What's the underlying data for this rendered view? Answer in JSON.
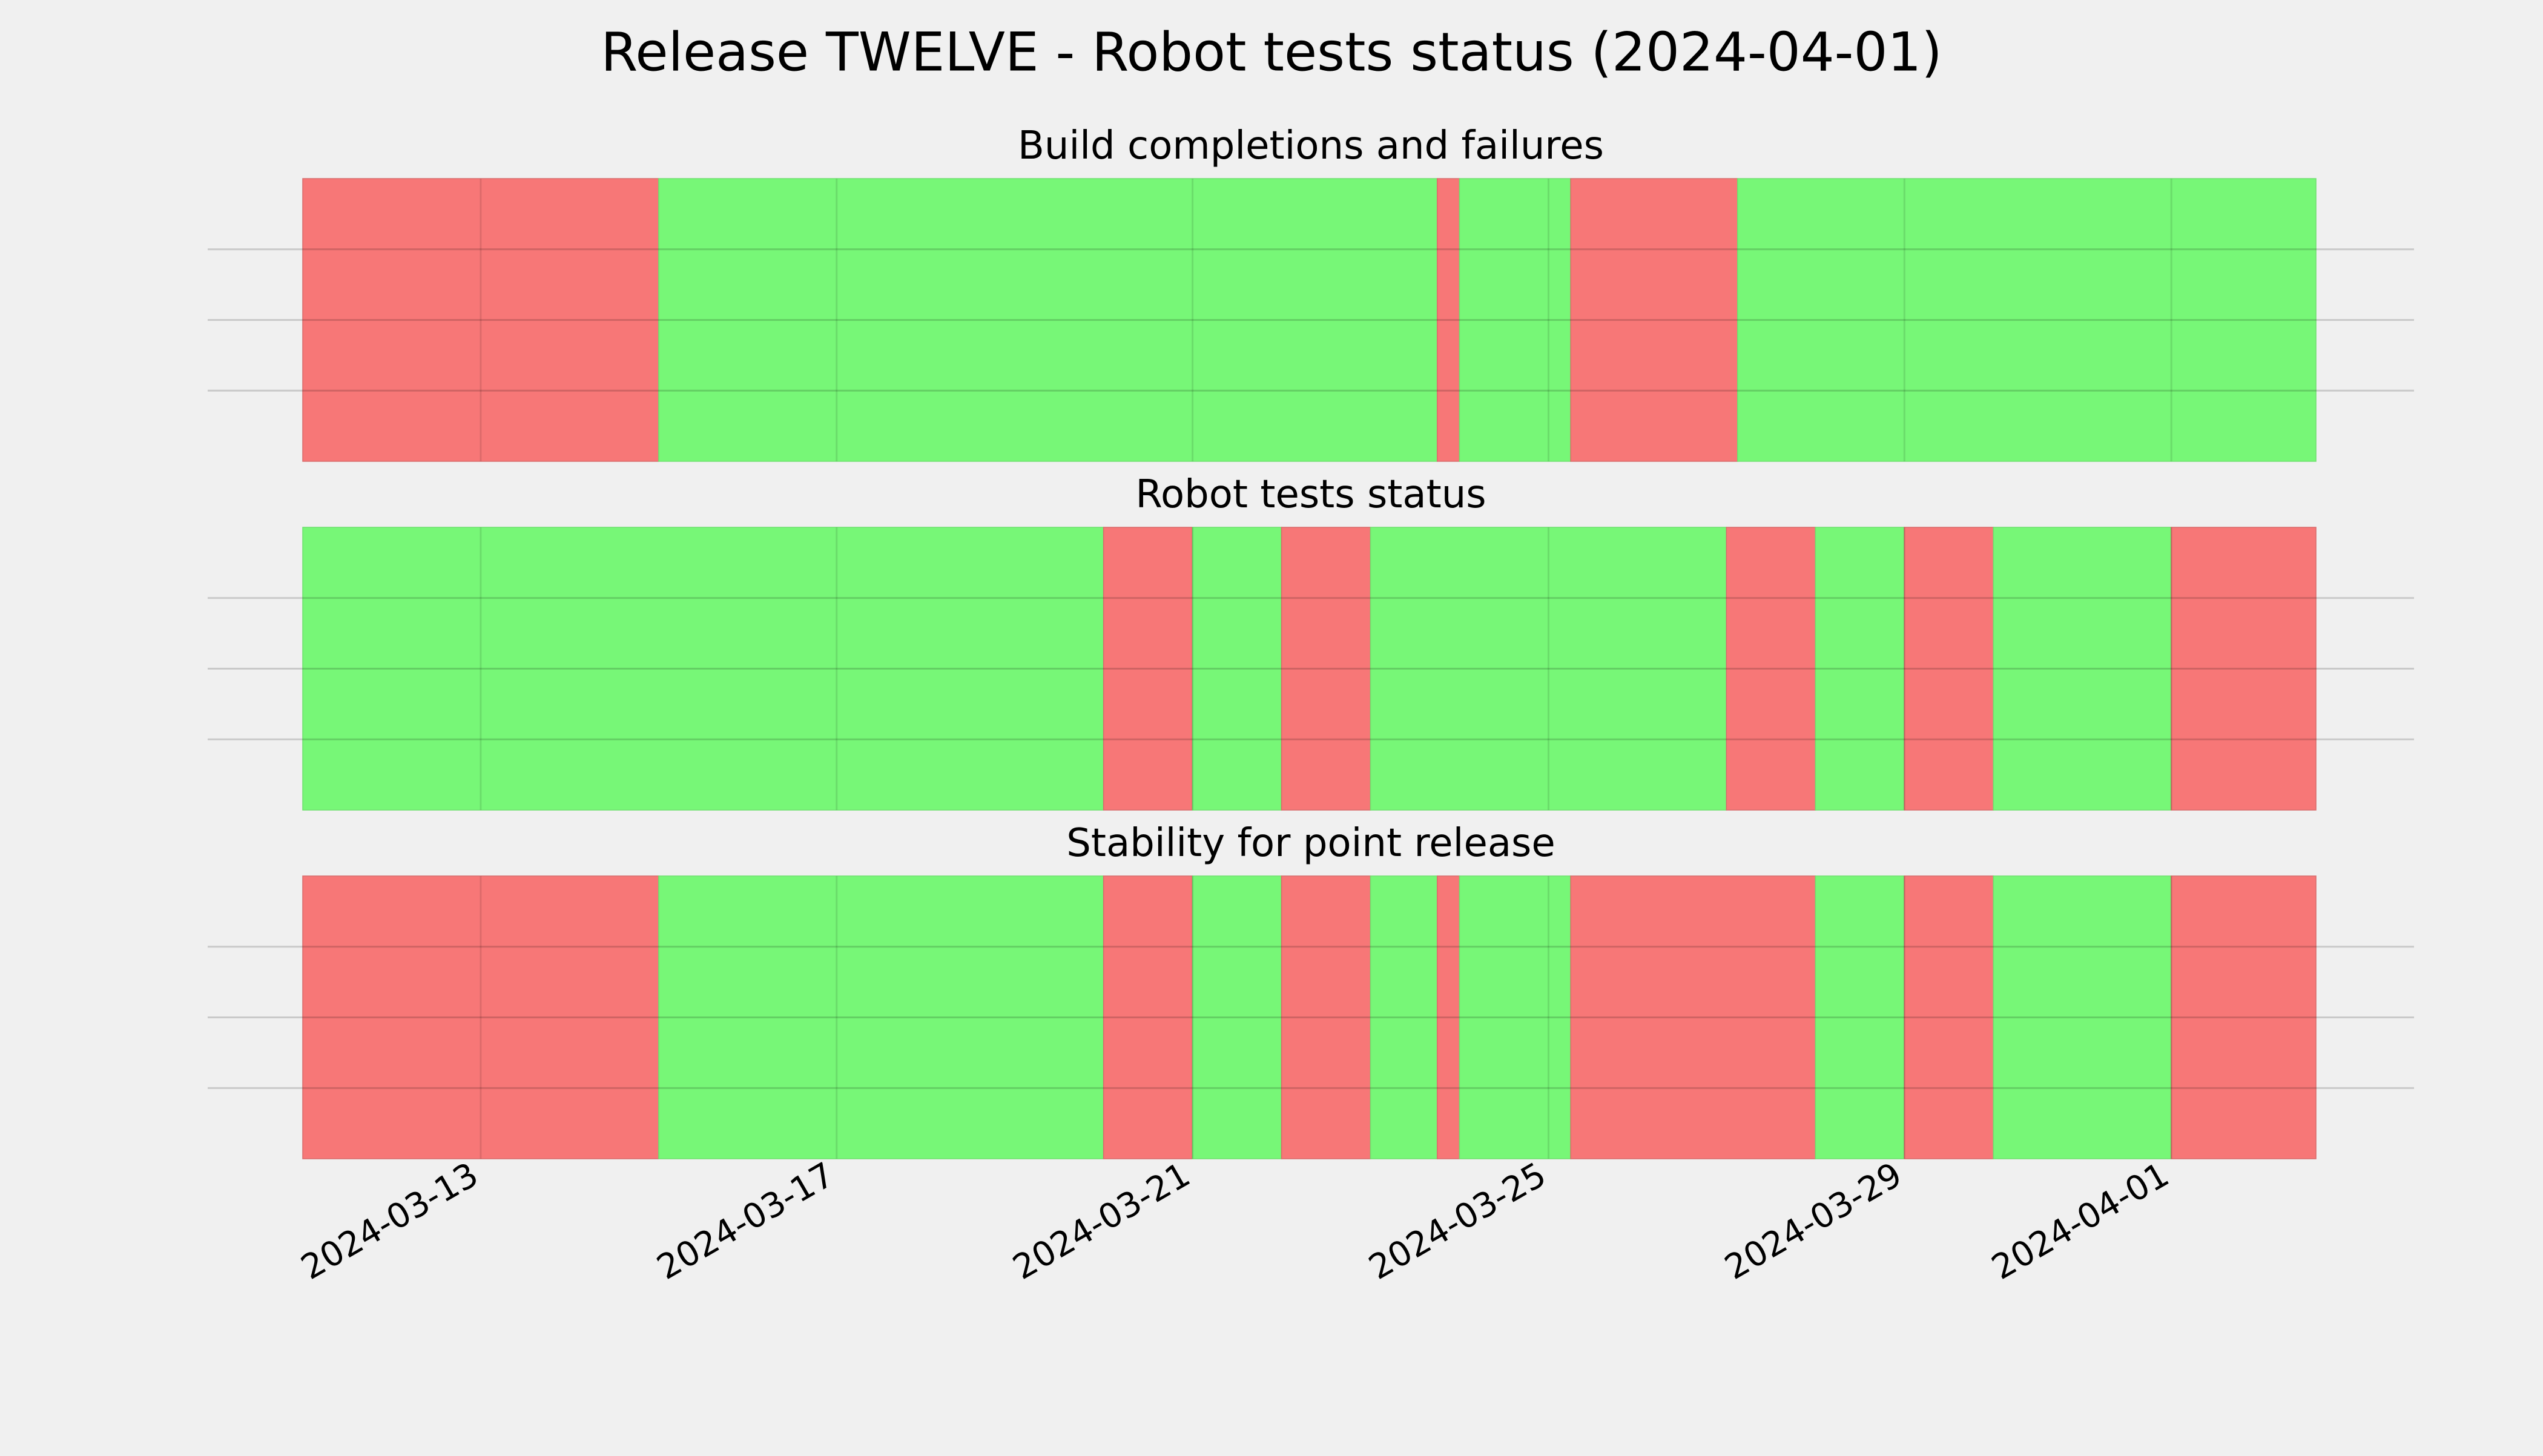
{
  "title": "Release TWELVE - Robot tests status (2024-04-01)",
  "colors": {
    "pass": "#77f777",
    "fail": "#f77777",
    "background": "#f0f0f0",
    "grid": "#cbcbcb"
  },
  "chart_data": {
    "type": "timeline",
    "x_range": [
      "2024-03-11",
      "2024-04-02 15:00"
    ],
    "x_ticks": [
      "2024-03-13",
      "2024-03-17",
      "2024-03-21",
      "2024-03-25",
      "2024-03-29",
      "2024-04-01"
    ],
    "grid": true,
    "subplots": [
      {
        "title": "Build completions and failures",
        "segments": [
          {
            "start": "2024-03-11",
            "end": "2024-03-15",
            "status": "fail"
          },
          {
            "start": "2024-03-15",
            "end": "2024-03-23 18:00",
            "status": "pass"
          },
          {
            "start": "2024-03-23 18:00",
            "end": "2024-03-24",
            "status": "fail"
          },
          {
            "start": "2024-03-24",
            "end": "2024-03-25 06:00",
            "status": "pass"
          },
          {
            "start": "2024-03-25 06:00",
            "end": "2024-03-27 03:00",
            "status": "fail"
          },
          {
            "start": "2024-03-27 03:00",
            "end": "2024-04-02 15:00",
            "status": "pass"
          }
        ]
      },
      {
        "title": "Robot tests status",
        "segments": [
          {
            "start": "2024-03-11",
            "end": "2024-03-20",
            "status": "pass"
          },
          {
            "start": "2024-03-20",
            "end": "2024-03-21",
            "status": "fail"
          },
          {
            "start": "2024-03-21",
            "end": "2024-03-22",
            "status": "pass"
          },
          {
            "start": "2024-03-22",
            "end": "2024-03-23",
            "status": "fail"
          },
          {
            "start": "2024-03-23",
            "end": "2024-03-27",
            "status": "pass"
          },
          {
            "start": "2024-03-27",
            "end": "2024-03-28",
            "status": "fail"
          },
          {
            "start": "2024-03-28",
            "end": "2024-03-29",
            "status": "pass"
          },
          {
            "start": "2024-03-29",
            "end": "2024-03-30",
            "status": "fail"
          },
          {
            "start": "2024-03-30",
            "end": "2024-04-01",
            "status": "pass"
          },
          {
            "start": "2024-04-01",
            "end": "2024-04-02 15:00",
            "status": "fail"
          }
        ]
      },
      {
        "title": "Stability for point release",
        "segments": [
          {
            "start": "2024-03-11",
            "end": "2024-03-15",
            "status": "fail"
          },
          {
            "start": "2024-03-15",
            "end": "2024-03-20",
            "status": "pass"
          },
          {
            "start": "2024-03-20",
            "end": "2024-03-21",
            "status": "fail"
          },
          {
            "start": "2024-03-21",
            "end": "2024-03-22",
            "status": "pass"
          },
          {
            "start": "2024-03-22",
            "end": "2024-03-23",
            "status": "fail"
          },
          {
            "start": "2024-03-23",
            "end": "2024-03-23 18:00",
            "status": "pass"
          },
          {
            "start": "2024-03-23 18:00",
            "end": "2024-03-24",
            "status": "fail"
          },
          {
            "start": "2024-03-24",
            "end": "2024-03-25 06:00",
            "status": "pass"
          },
          {
            "start": "2024-03-25 06:00",
            "end": "2024-03-28",
            "status": "fail"
          },
          {
            "start": "2024-03-28",
            "end": "2024-03-29",
            "status": "pass"
          },
          {
            "start": "2024-03-29",
            "end": "2024-03-30",
            "status": "fail"
          },
          {
            "start": "2024-03-30",
            "end": "2024-04-01",
            "status": "pass"
          },
          {
            "start": "2024-04-01",
            "end": "2024-04-02 15:00",
            "status": "fail"
          }
        ]
      }
    ]
  }
}
